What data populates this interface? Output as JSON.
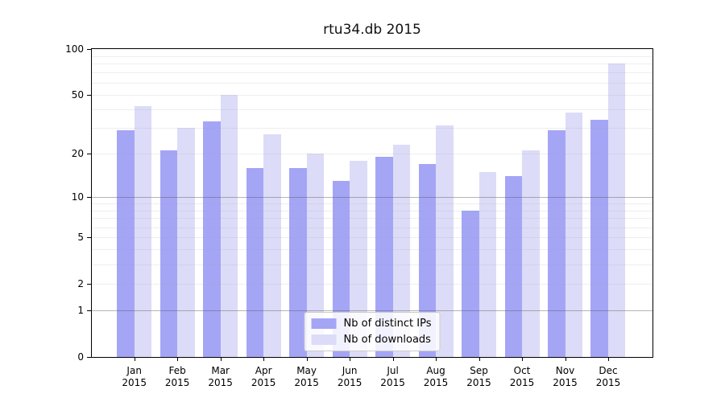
{
  "chart_data": {
    "type": "bar",
    "title": "rtu34.db 2015",
    "categories": [
      "Jan 2015",
      "Feb 2015",
      "Mar 2015",
      "Apr 2015",
      "May 2015",
      "Jun 2015",
      "Jul 2015",
      "Aug 2015",
      "Sep 2015",
      "Oct 2015",
      "Nov 2015",
      "Dec 2015"
    ],
    "series": [
      {
        "name": "Nb of distinct IPs",
        "color": "#a5a5f6",
        "values": [
          29,
          21,
          33,
          16,
          16,
          13,
          19,
          17,
          8,
          14,
          29,
          34
        ]
      },
      {
        "name": "Nb of downloads",
        "color": "#dcdcf8",
        "values": [
          42,
          30,
          50,
          27,
          20,
          18,
          23,
          31,
          15,
          21,
          38,
          80
        ]
      }
    ],
    "xlabel": "",
    "ylabel": "",
    "yscale": "log1p",
    "y_ticks": [
      0,
      1,
      2,
      5,
      10,
      20,
      50,
      100
    ],
    "ylim": [
      0,
      100
    ],
    "grid": true,
    "legend_position": "lower center"
  }
}
